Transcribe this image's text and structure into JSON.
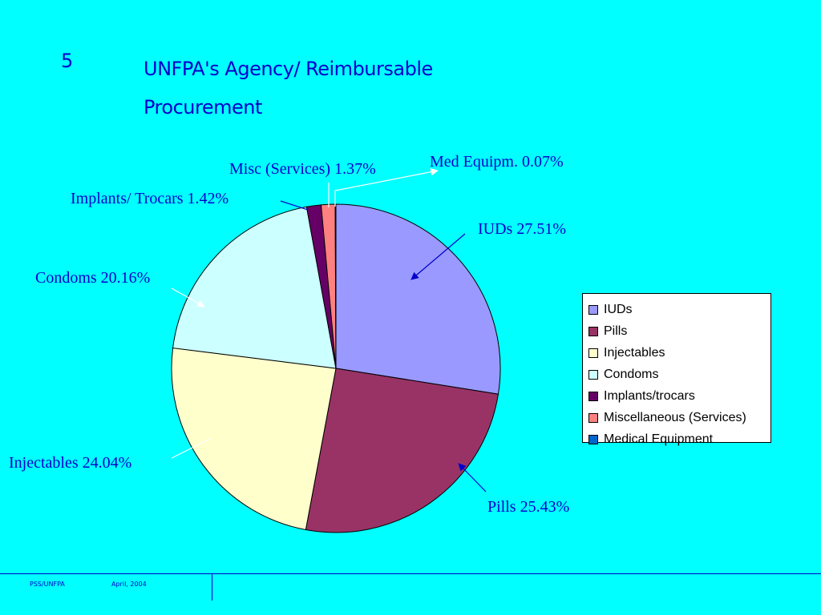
{
  "slide": {
    "number": "5",
    "title": "UNFPA's Agency/ Reimbursable Procurement"
  },
  "footer": {
    "org": "PSS/UNFPA",
    "date": "April, 2004"
  },
  "chart_data": {
    "type": "pie",
    "title": "",
    "slices": [
      {
        "name": "IUDs",
        "value": 27.51,
        "color": "#9999ff",
        "label": "IUDs 27.51%"
      },
      {
        "name": "Pills",
        "value": 25.43,
        "color": "#993366",
        "label": "Pills 25.43%"
      },
      {
        "name": "Injectables",
        "value": 24.04,
        "color": "#ffffcc",
        "label": "Injectables 24.04%"
      },
      {
        "name": "Condoms",
        "value": 20.16,
        "color": "#ccffff",
        "label": "Condoms 20.16%"
      },
      {
        "name": "Implants/trocars",
        "value": 1.42,
        "color": "#660066",
        "label": "Implants/ Trocars 1.42%"
      },
      {
        "name": "Miscellaneous (Services)",
        "value": 1.37,
        "color": "#ff8080",
        "label": "Misc (Services) 1.37%"
      },
      {
        "name": "Medical Equipment",
        "value": 0.07,
        "color": "#0066cc",
        "label": "Med Equipm. 0.07%"
      }
    ],
    "legend_entries": [
      "IUDs",
      "Pills",
      "Injectables",
      "Condoms",
      "Implants/trocars",
      "Miscellaneous (Services)",
      "Medical Equipment"
    ],
    "legend_position": "right"
  }
}
